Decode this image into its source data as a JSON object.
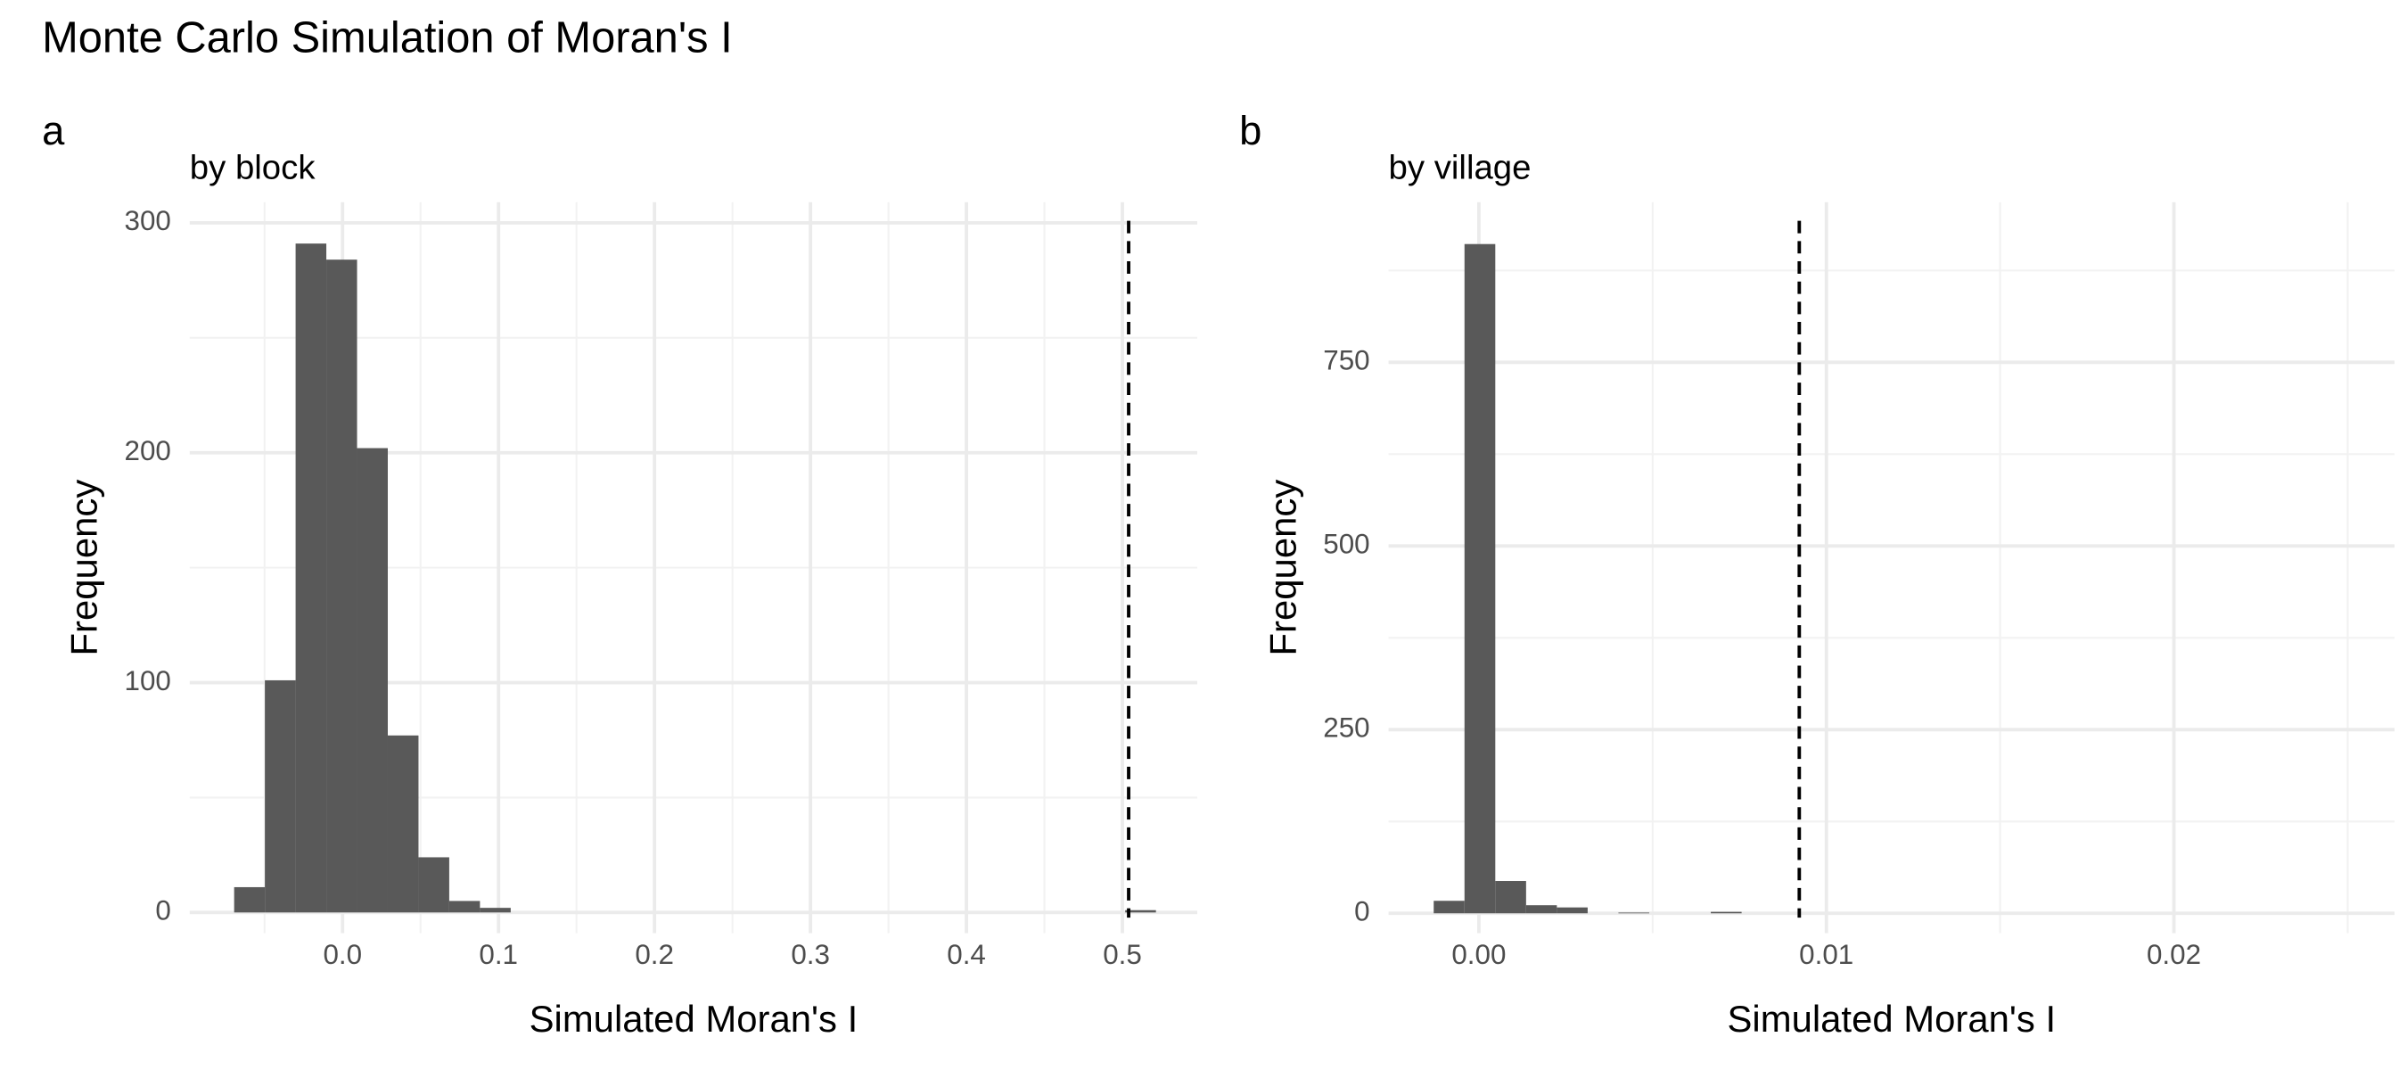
{
  "title": "Monte Carlo Simulation of Moran's I",
  "chart_data": [
    {
      "type": "histogram",
      "tag": "a",
      "title": "by block",
      "xlabel": "Simulated Moran's I",
      "ylabel": "Frequency",
      "bins": [
        -0.0695,
        -0.0498,
        -0.0301,
        -0.0104,
        0.0093,
        0.029,
        0.0487,
        0.0684,
        0.0881,
        0.1078,
        0.1275,
        0.1472,
        0.1669,
        0.1866,
        0.2063,
        0.226,
        0.2457,
        0.2654,
        0.2851,
        0.3048,
        0.3245,
        0.3442,
        0.3639,
        0.3836,
        0.4033,
        0.423,
        0.4427,
        0.4624,
        0.4821,
        0.5018,
        0.5215
      ],
      "counts": [
        11,
        101,
        291,
        284,
        202,
        77,
        24,
        5,
        2,
        0,
        0,
        0,
        0,
        0,
        0,
        0,
        0,
        0,
        0,
        0,
        0,
        0,
        0,
        0,
        0,
        0,
        0,
        0,
        0,
        1
      ],
      "color": "#595959",
      "vline": 0.504,
      "xlim": [
        -0.098,
        0.548
      ],
      "ylim": [
        -9,
        309
      ],
      "xticks": [
        {
          "value": 0,
          "label": "0.0"
        },
        0.1,
        0.2,
        0.3,
        0.4,
        0.5
      ],
      "yticks": [
        0,
        100,
        200,
        300
      ],
      "grid": true
    },
    {
      "type": "histogram",
      "tag": "b",
      "title": "by village",
      "xlabel": "Simulated Moran's I",
      "ylabel": "Frequency",
      "bins": [
        -0.0013,
        -0.000414,
        0.000472,
        0.001358,
        0.002244,
        0.00313,
        0.004016,
        0.004902,
        0.005788,
        0.006674,
        0.00756
      ],
      "counts": [
        17,
        911,
        44,
        11,
        8,
        0,
        1,
        0,
        0,
        2
      ],
      "color": "#595959",
      "vline": 0.00922,
      "xlim": [
        -0.0026,
        0.02635
      ],
      "ylim": [
        -27,
        968
      ],
      "xticks": [
        {
          "value": 0,
          "label": "0.00"
        },
        {
          "value": 0.01,
          "label": "0.01"
        },
        {
          "value": 0.02,
          "label": "0.02"
        }
      ],
      "yticks": [
        0,
        250,
        500,
        750
      ],
      "grid": true
    }
  ]
}
